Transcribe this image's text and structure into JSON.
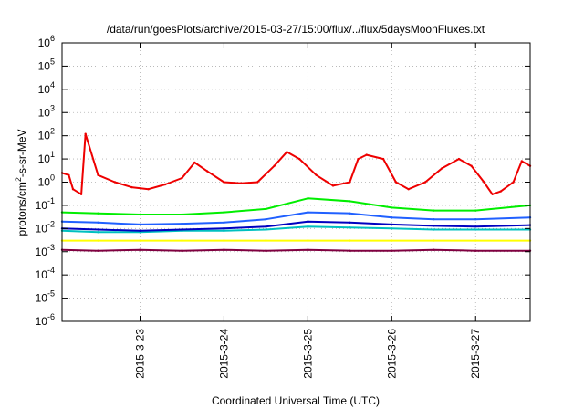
{
  "chart_data": {
    "type": "line",
    "title": "/data/run/goesPlots/archive/2015-03-27/15:00/flux/../flux/5daysMoonFluxes.txt",
    "xlabel": "Coordinated Universal Time (UTC)",
    "ylabel": {
      "pre": "protons/cm",
      "sup": "2",
      "post": "-s-sr-MeV"
    },
    "x_unit": "days since 2015-03-22 00:00 UTC",
    "xlim": [
      0.07,
      5.65
    ],
    "yscale": "log",
    "ylim": [
      1e-06,
      1000000.0
    ],
    "grid": true,
    "x_ticks": [
      {
        "x": 1,
        "label": "2015-3-23"
      },
      {
        "x": 2,
        "label": "2015-3-24"
      },
      {
        "x": 3,
        "label": "2015-3-25"
      },
      {
        "x": 4,
        "label": "2015-3-26"
      },
      {
        "x": 5,
        "label": "2015-3-27"
      }
    ],
    "y_ticks": [
      {
        "v": 1e-06,
        "base": "10",
        "exp": "-6"
      },
      {
        "v": 1e-05,
        "base": "10",
        "exp": "-5"
      },
      {
        "v": 0.0001,
        "base": "10",
        "exp": "-4"
      },
      {
        "v": 0.001,
        "base": "10",
        "exp": "-3"
      },
      {
        "v": 0.01,
        "base": "10",
        "exp": "-2"
      },
      {
        "v": 0.1,
        "base": "10",
        "exp": "-1"
      },
      {
        "v": 1,
        "base": "10",
        "exp": "0"
      },
      {
        "v": 10,
        "base": "10",
        "exp": "1"
      },
      {
        "v": 100,
        "base": "10",
        "exp": "2"
      },
      {
        "v": 1000.0,
        "base": "10",
        "exp": "3"
      },
      {
        "v": 10000.0,
        "base": "10",
        "exp": "4"
      },
      {
        "v": 100000.0,
        "base": "10",
        "exp": "5"
      },
      {
        "v": 1000000.0,
        "base": "10",
        "exp": "6"
      }
    ],
    "series": [
      {
        "color": "#800040",
        "x": [
          0.07,
          0.5,
          1.0,
          1.5,
          2.0,
          2.5,
          3.0,
          3.5,
          4.0,
          4.5,
          5.0,
          5.65
        ],
        "values": [
          0.0012,
          0.0011,
          0.0012,
          0.0011,
          0.0012,
          0.0011,
          0.0012,
          0.0011,
          0.0011,
          0.0012,
          0.0011,
          0.0011
        ]
      },
      {
        "color": "#ffff00",
        "x": [
          0.07,
          0.5,
          1.0,
          1.5,
          2.0,
          2.5,
          3.0,
          3.5,
          4.0,
          4.5,
          5.0,
          5.65
        ],
        "values": [
          0.003,
          0.003,
          0.003,
          0.003,
          0.003,
          0.003,
          0.003,
          0.003,
          0.003,
          0.003,
          0.003,
          0.003
        ]
      },
      {
        "color": "#00c0c0",
        "x": [
          0.07,
          0.5,
          1.0,
          1.5,
          2.0,
          2.5,
          3.0,
          3.5,
          4.0,
          4.5,
          5.0,
          5.65
        ],
        "values": [
          0.008,
          0.007,
          0.007,
          0.008,
          0.008,
          0.009,
          0.012,
          0.011,
          0.01,
          0.009,
          0.009,
          0.009
        ]
      },
      {
        "color": "#0000c0",
        "x": [
          0.07,
          0.5,
          1.0,
          1.5,
          2.0,
          2.5,
          3.0,
          3.5,
          4.0,
          4.5,
          5.0,
          5.65
        ],
        "values": [
          0.01,
          0.009,
          0.008,
          0.009,
          0.01,
          0.012,
          0.02,
          0.018,
          0.015,
          0.013,
          0.012,
          0.014
        ]
      },
      {
        "color": "#2060ff",
        "x": [
          0.07,
          0.5,
          1.0,
          1.5,
          2.0,
          2.5,
          3.0,
          3.5,
          4.0,
          4.5,
          5.0,
          5.65
        ],
        "values": [
          0.02,
          0.018,
          0.015,
          0.016,
          0.018,
          0.025,
          0.05,
          0.045,
          0.03,
          0.025,
          0.025,
          0.03
        ]
      },
      {
        "color": "#00ee00",
        "x": [
          0.07,
          0.5,
          1.0,
          1.5,
          2.0,
          2.5,
          3.0,
          3.5,
          4.0,
          4.5,
          5.0,
          5.65
        ],
        "values": [
          0.05,
          0.045,
          0.04,
          0.04,
          0.05,
          0.07,
          0.2,
          0.15,
          0.08,
          0.06,
          0.06,
          0.1
        ]
      },
      {
        "color": "#ee0000",
        "x": [
          0.07,
          0.15,
          0.2,
          0.3,
          0.35,
          0.5,
          0.7,
          0.9,
          1.1,
          1.3,
          1.5,
          1.65,
          1.8,
          2.0,
          2.2,
          2.4,
          2.6,
          2.75,
          2.9,
          3.1,
          3.3,
          3.5,
          3.6,
          3.7,
          3.9,
          4.05,
          4.2,
          4.4,
          4.6,
          4.8,
          4.95,
          5.1,
          5.2,
          5.3,
          5.45,
          5.55,
          5.65
        ],
        "values": [
          2.5,
          2.0,
          0.5,
          0.3,
          120,
          2.0,
          1.0,
          0.6,
          0.5,
          0.8,
          1.5,
          7.0,
          3.0,
          1.0,
          0.9,
          1.0,
          5.0,
          20,
          10,
          2.0,
          0.7,
          1.0,
          10,
          15,
          10,
          1.0,
          0.5,
          1.0,
          4.0,
          10,
          5.0,
          1.0,
          0.3,
          0.4,
          1.0,
          8.0,
          5.0
        ]
      }
    ]
  }
}
